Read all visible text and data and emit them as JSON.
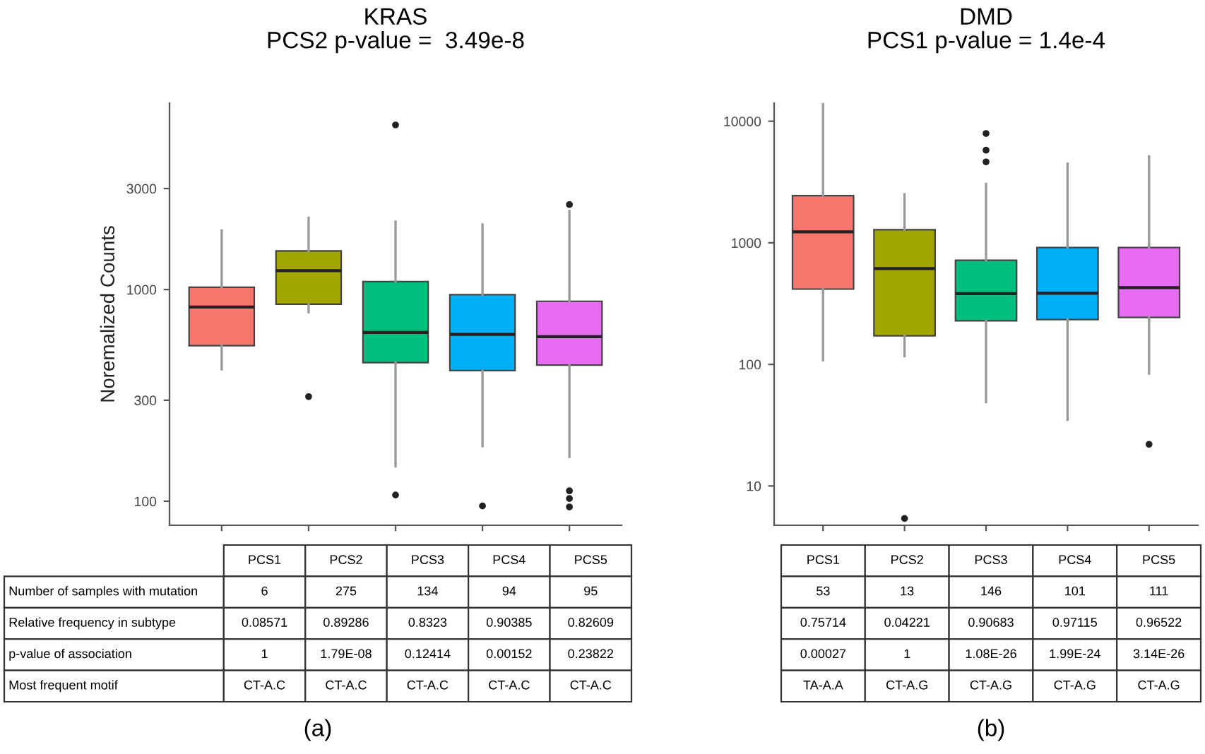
{
  "chart_data": [
    {
      "type": "box",
      "title": "KRAS",
      "subtitle": "PCS2 p-value =  3.49e-8",
      "ylabel": "Noremalized Counts",
      "log": "y",
      "grid": false,
      "categories": [
        null,
        null,
        null,
        null,
        null
      ],
      "colors": [
        "#f8766d",
        "#a3a500",
        "#00bf7d",
        "#00b0f6",
        "#e76bf3"
      ],
      "boxes": [
        {
          "low": 420,
          "q1": 543,
          "median": 827,
          "q3": 1026,
          "high": 1900
        },
        {
          "low": 782,
          "q1": 853,
          "median": 1228,
          "q3": 1523,
          "high": 2180,
          "outliers": [
            312
          ]
        },
        {
          "low": 146,
          "q1": 452,
          "median": 627,
          "q3": 1091,
          "high": 2090,
          "outliers": [
            107,
            5990
          ]
        },
        {
          "low": 182,
          "q1": 414,
          "median": 614,
          "q3": 945,
          "high": 2030,
          "outliers": [
            95
          ]
        },
        {
          "low": 162,
          "q1": 440,
          "median": 599,
          "q3": 880,
          "high": 2350,
          "outliers": [
            94,
            103,
            112,
            2520
          ]
        }
      ],
      "ylim": [
        77,
        7600
      ],
      "yticks": [
        100,
        300,
        1000,
        3000
      ]
    },
    {
      "type": "other",
      "categories": [
        "PCS1",
        "PCS2",
        "PCS3",
        "PCS4",
        "PCS5"
      ],
      "y_categories": [
        "Number of samples with mutation",
        "Relative frequency in subtype",
        "p-value of association",
        "Most frequent motif"
      ],
      "cell_labels": [
        [
          "6",
          "275",
          "134",
          "94",
          "95"
        ],
        [
          "0.08571",
          "0.89286",
          "0.8323",
          "0.90385",
          "0.82609"
        ],
        [
          "1",
          "1.79E-08",
          "0.12414",
          "0.00152",
          "0.23822"
        ],
        [
          "CT-A.C",
          "CT-A.C",
          "CT-A.C",
          "CT-A.C",
          "CT-A.C"
        ]
      ],
      "annotations": [
        "(a)"
      ]
    },
    {
      "type": "box",
      "title": "DMD",
      "subtitle": "PCS1 p-value = 1.4e-4",
      "log": "y",
      "grid": false,
      "categories": [
        null,
        null,
        null,
        null,
        null
      ],
      "colors": [
        "#f8766d",
        "#a3a500",
        "#00bf7d",
        "#00b0f6",
        "#e76bf3"
      ],
      "boxes": [
        {
          "low": 108,
          "q1": 416,
          "median": 1230,
          "q3": 2440,
          "high": 14000
        },
        {
          "low": 117,
          "q1": 172,
          "median": 614,
          "q3": 1280,
          "high": 2510,
          "outliers": [
            5.4
          ]
        },
        {
          "low": 49,
          "q1": 228,
          "median": 382,
          "q3": 718,
          "high": 3050,
          "outliers": [
            4630,
            5780,
            7930
          ]
        },
        {
          "low": 35,
          "q1": 234,
          "median": 385,
          "q3": 914,
          "high": 4470
        },
        {
          "low": 84,
          "q1": 243,
          "median": 428,
          "q3": 914,
          "high": 5130,
          "outliers": [
            22
          ]
        }
      ],
      "ylim": [
        4.75,
        14100
      ],
      "yticks": [
        10,
        100,
        1000,
        10000
      ]
    },
    {
      "type": "other",
      "categories": [
        "PCS1",
        "PCS2",
        "PCS3",
        "PCS4",
        "PCS5"
      ],
      "cell_labels": [
        [
          "53",
          "13",
          "146",
          "101",
          "111"
        ],
        [
          "0.75714",
          "0.04221",
          "0.90683",
          "0.97115",
          "0.96522"
        ],
        [
          "0.00027",
          "1",
          "1.08E-26",
          "1.99E-24",
          "3.14E-26"
        ],
        [
          "TA-A.A",
          "CT-A.G",
          "CT-A.G",
          "CT-A.G",
          "CT-A.G"
        ]
      ],
      "annotations": [
        "(b)"
      ]
    }
  ]
}
